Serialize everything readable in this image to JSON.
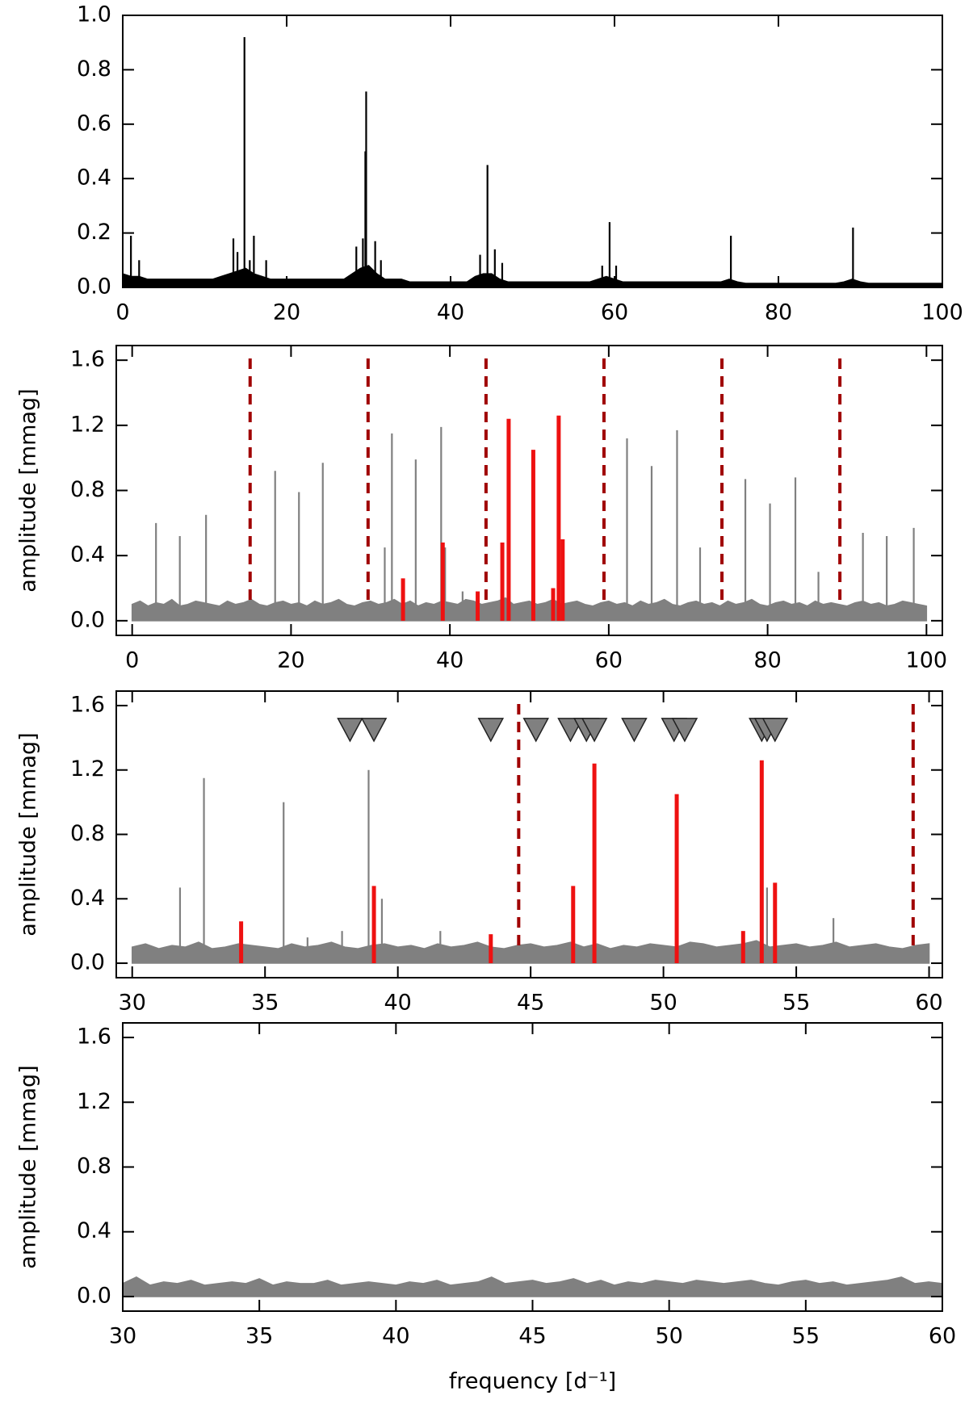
{
  "chart_data": [
    {
      "type": "spectrum",
      "xlim": [
        0,
        100
      ],
      "ylim": [
        0,
        1.0
      ],
      "xticks": [
        0,
        20,
        40,
        60,
        80,
        100
      ],
      "yticks": [
        {
          "value": 0,
          "label": "0.0"
        },
        0.2,
        0.4,
        0.6,
        0.8,
        {
          "value": 1.0,
          "label": "1.0"
        }
      ],
      "noise": {
        "color": "#000000",
        "x": [
          0,
          1,
          2,
          3,
          4,
          5,
          6,
          7,
          8,
          9,
          10,
          11,
          12,
          13,
          14,
          15,
          16,
          17,
          18,
          19,
          20,
          21,
          22,
          23,
          24,
          25,
          26,
          27,
          28,
          29,
          30,
          31,
          32,
          33,
          34,
          35,
          36,
          37,
          38,
          39,
          40,
          41,
          42,
          43,
          44,
          45,
          46,
          47,
          48,
          49,
          50,
          51,
          52,
          53,
          54,
          55,
          56,
          57,
          58,
          59,
          60,
          61,
          62,
          63,
          64,
          65,
          66,
          67,
          68,
          69,
          70,
          71,
          72,
          73,
          74,
          75,
          76,
          77,
          78,
          79,
          80,
          81,
          82,
          83,
          84,
          85,
          86,
          87,
          88,
          89,
          90,
          91,
          92,
          93,
          94,
          95,
          96,
          97,
          98,
          99,
          100
        ],
        "values": [
          0.05,
          0.04,
          0.04,
          0.03,
          0.03,
          0.03,
          0.03,
          0.03,
          0.03,
          0.03,
          0.03,
          0.03,
          0.04,
          0.05,
          0.06,
          0.07,
          0.05,
          0.04,
          0.03,
          0.03,
          0.03,
          0.03,
          0.03,
          0.03,
          0.03,
          0.03,
          0.03,
          0.03,
          0.05,
          0.07,
          0.08,
          0.05,
          0.03,
          0.03,
          0.03,
          0.02,
          0.02,
          0.02,
          0.02,
          0.02,
          0.02,
          0.02,
          0.02,
          0.04,
          0.05,
          0.05,
          0.03,
          0.02,
          0.02,
          0.02,
          0.02,
          0.02,
          0.02,
          0.02,
          0.02,
          0.02,
          0.02,
          0.02,
          0.03,
          0.04,
          0.03,
          0.02,
          0.02,
          0.02,
          0.02,
          0.02,
          0.02,
          0.02,
          0.02,
          0.02,
          0.02,
          0.02,
          0.02,
          0.02,
          0.03,
          0.02,
          0.015,
          0.015,
          0.015,
          0.015,
          0.015,
          0.015,
          0.015,
          0.015,
          0.015,
          0.015,
          0.015,
          0.015,
          0.02,
          0.03,
          0.02,
          0.015,
          0.015,
          0.015,
          0.015,
          0.015,
          0.015,
          0.015,
          0.015,
          0.015,
          0.015
        ]
      },
      "peaks": {
        "color": "#000000",
        "x": [
          1.0,
          2.0,
          13.5,
          14.0,
          14.85,
          15.5,
          16.0,
          17.5,
          28.5,
          29.3,
          29.6,
          29.7,
          30.8,
          31.5,
          43.6,
          44.5,
          45.4,
          46.3,
          58.5,
          59.4,
          60.2,
          74.2,
          89.1
        ],
        "values": [
          0.19,
          0.1,
          0.18,
          0.13,
          0.92,
          0.1,
          0.19,
          0.1,
          0.15,
          0.18,
          0.5,
          0.72,
          0.17,
          0.1,
          0.12,
          0.45,
          0.14,
          0.09,
          0.08,
          0.24,
          0.08,
          0.19,
          0.22
        ]
      }
    },
    {
      "type": "spectrum",
      "xlim": [
        -2,
        102
      ],
      "ylim": [
        -0.09,
        1.69
      ],
      "xticks": [
        0,
        20,
        40,
        60,
        80,
        100
      ],
      "yticks": [
        {
          "value": 0,
          "label": "0.0"
        },
        0.4,
        0.8,
        1.2,
        1.6
      ],
      "ylabel": "amplitude [mmag]",
      "noise": {
        "color": "#808080",
        "x": [
          0,
          1,
          2,
          3,
          4,
          5,
          6,
          7,
          8,
          9,
          10,
          11,
          12,
          13,
          14,
          15,
          16,
          17,
          18,
          19,
          20,
          21,
          22,
          23,
          24,
          25,
          26,
          27,
          28,
          29,
          30,
          31,
          32,
          33,
          34,
          35,
          36,
          37,
          38,
          39,
          40,
          41,
          42,
          43,
          44,
          45,
          46,
          47,
          48,
          49,
          50,
          51,
          52,
          53,
          54,
          55,
          56,
          57,
          58,
          59,
          60,
          61,
          62,
          63,
          64,
          65,
          66,
          67,
          68,
          69,
          70,
          71,
          72,
          73,
          74,
          75,
          76,
          77,
          78,
          79,
          80,
          81,
          82,
          83,
          84,
          85,
          86,
          87,
          88,
          89,
          90,
          91,
          92,
          93,
          94,
          95,
          96,
          97,
          98,
          99,
          100
        ],
        "values": [
          0.1,
          0.12,
          0.09,
          0.11,
          0.1,
          0.13,
          0.09,
          0.1,
          0.12,
          0.11,
          0.1,
          0.09,
          0.12,
          0.1,
          0.11,
          0.13,
          0.1,
          0.09,
          0.11,
          0.12,
          0.1,
          0.11,
          0.09,
          0.12,
          0.1,
          0.11,
          0.13,
          0.1,
          0.09,
          0.11,
          0.12,
          0.1,
          0.11,
          0.13,
          0.1,
          0.12,
          0.09,
          0.11,
          0.1,
          0.12,
          0.11,
          0.1,
          0.13,
          0.12,
          0.1,
          0.11,
          0.12,
          0.14,
          0.1,
          0.11,
          0.12,
          0.1,
          0.11,
          0.13,
          0.1,
          0.11,
          0.12,
          0.1,
          0.09,
          0.11,
          0.12,
          0.1,
          0.11,
          0.09,
          0.12,
          0.1,
          0.11,
          0.13,
          0.1,
          0.09,
          0.11,
          0.12,
          0.1,
          0.11,
          0.09,
          0.12,
          0.1,
          0.11,
          0.13,
          0.1,
          0.09,
          0.11,
          0.12,
          0.1,
          0.11,
          0.09,
          0.12,
          0.1,
          0.11,
          0.1,
          0.09,
          0.11,
          0.12,
          0.1,
          0.11,
          0.09,
          0.1,
          0.12,
          0.11,
          0.1,
          0.09
        ]
      },
      "peaks": {
        "color": "#808080",
        "x": [
          3.0,
          6.0,
          9.3,
          18.0,
          21.0,
          24.0,
          31.8,
          32.7,
          35.7,
          38.9,
          39.4,
          41.6,
          62.3,
          65.4,
          68.6,
          71.5,
          77.2,
          80.3,
          83.5,
          86.4,
          92.0,
          95.0,
          98.4
        ],
        "values": [
          0.6,
          0.52,
          0.65,
          0.92,
          0.79,
          0.97,
          0.45,
          1.15,
          0.99,
          1.19,
          0.45,
          0.18,
          1.12,
          0.95,
          1.17,
          0.45,
          0.87,
          0.72,
          0.88,
          0.3,
          0.54,
          0.52,
          0.57
        ]
      },
      "red_peaks": {
        "color": "#ee1111",
        "x": [
          34.1,
          39.1,
          43.5,
          46.6,
          47.4,
          50.5,
          53.0,
          53.7,
          54.2
        ],
        "values": [
          0.26,
          0.48,
          0.18,
          0.48,
          1.24,
          1.05,
          0.2,
          1.26,
          0.5
        ]
      },
      "dashed_lines": {
        "color": "#a00000",
        "x": [
          14.85,
          29.7,
          44.55,
          59.4,
          74.25,
          89.1
        ]
      }
    },
    {
      "type": "spectrum",
      "xlim": [
        29.4,
        60.5
      ],
      "ylim": [
        -0.09,
        1.69
      ],
      "xticks": [
        30,
        35,
        40,
        45,
        50,
        55,
        60
      ],
      "yticks": [
        {
          "value": 0,
          "label": "0.0"
        },
        0.4,
        0.8,
        1.2,
        1.6
      ],
      "ylabel": "amplitude [mmag]",
      "noise": {
        "color": "#808080",
        "x": [
          30,
          30.5,
          31,
          31.5,
          32,
          32.5,
          33,
          33.5,
          34,
          34.5,
          35,
          35.5,
          36,
          36.5,
          37,
          37.5,
          38,
          38.5,
          39,
          39.5,
          40,
          40.5,
          41,
          41.5,
          42,
          42.5,
          43,
          43.5,
          44,
          44.5,
          45,
          45.5,
          46,
          46.5,
          47,
          47.5,
          48,
          48.5,
          49,
          49.5,
          50,
          50.5,
          51,
          51.5,
          52,
          52.5,
          53,
          53.5,
          54,
          54.5,
          55,
          55.5,
          56,
          56.5,
          57,
          57.5,
          58,
          58.5,
          59,
          59.5,
          60
        ],
        "values": [
          0.1,
          0.12,
          0.09,
          0.11,
          0.1,
          0.13,
          0.09,
          0.1,
          0.12,
          0.11,
          0.1,
          0.09,
          0.12,
          0.1,
          0.11,
          0.13,
          0.1,
          0.09,
          0.11,
          0.12,
          0.1,
          0.11,
          0.09,
          0.12,
          0.1,
          0.11,
          0.13,
          0.1,
          0.09,
          0.11,
          0.12,
          0.1,
          0.11,
          0.13,
          0.1,
          0.12,
          0.09,
          0.11,
          0.1,
          0.12,
          0.11,
          0.1,
          0.13,
          0.12,
          0.1,
          0.11,
          0.12,
          0.14,
          0.1,
          0.11,
          0.12,
          0.1,
          0.11,
          0.13,
          0.1,
          0.11,
          0.12,
          0.1,
          0.09,
          0.11,
          0.12
        ]
      },
      "peaks": {
        "color": "#808080",
        "x": [
          31.8,
          32.7,
          35.7,
          36.6,
          37.9,
          38.9,
          39.4,
          41.6,
          53.9,
          56.4
        ],
        "values": [
          0.47,
          1.15,
          1.0,
          0.16,
          0.2,
          1.2,
          0.4,
          0.2,
          0.47,
          0.28
        ]
      },
      "red_peaks": {
        "color": "#ee1111",
        "x": [
          34.1,
          39.1,
          43.5,
          46.6,
          47.4,
          50.5,
          53.0,
          53.7,
          54.2
        ],
        "values": [
          0.26,
          0.48,
          0.18,
          0.48,
          1.24,
          1.05,
          0.2,
          1.26,
          0.5
        ]
      },
      "dashed_lines": {
        "color": "#a00000",
        "x": [
          44.55,
          59.4
        ]
      },
      "triangles": {
        "color": "#808080",
        "y": 1.45,
        "x": [
          38.2,
          39.1,
          43.5,
          45.2,
          46.5,
          47.1,
          47.4,
          48.9,
          50.4,
          50.8,
          53.7,
          53.9,
          54.2
        ]
      }
    },
    {
      "type": "spectrum",
      "xlim": [
        30,
        60
      ],
      "ylim": [
        -0.09,
        1.69
      ],
      "xticks": [
        30,
        35,
        40,
        45,
        50,
        55,
        60
      ],
      "yticks": [
        {
          "value": 0,
          "label": "0.0"
        },
        0.4,
        0.8,
        1.2,
        1.6
      ],
      "ylabel": "amplitude [mmag]",
      "xlabel": "frequency [d⁻¹]",
      "noise": {
        "color": "#808080",
        "x": [
          30,
          30.5,
          31,
          31.5,
          32,
          32.5,
          33,
          33.5,
          34,
          34.5,
          35,
          35.5,
          36,
          36.5,
          37,
          37.5,
          38,
          38.5,
          39,
          39.5,
          40,
          40.5,
          41,
          41.5,
          42,
          42.5,
          43,
          43.5,
          44,
          44.5,
          45,
          45.5,
          46,
          46.5,
          47,
          47.5,
          48,
          48.5,
          49,
          49.5,
          50,
          50.5,
          51,
          51.5,
          52,
          52.5,
          53,
          53.5,
          54,
          54.5,
          55,
          55.5,
          56,
          56.5,
          57,
          57.5,
          58,
          58.5,
          59,
          59.5,
          60
        ],
        "values": [
          0.08,
          0.12,
          0.07,
          0.09,
          0.08,
          0.1,
          0.07,
          0.08,
          0.09,
          0.08,
          0.11,
          0.07,
          0.09,
          0.08,
          0.08,
          0.1,
          0.07,
          0.08,
          0.09,
          0.08,
          0.07,
          0.09,
          0.08,
          0.1,
          0.07,
          0.08,
          0.09,
          0.12,
          0.08,
          0.09,
          0.1,
          0.08,
          0.09,
          0.11,
          0.08,
          0.1,
          0.07,
          0.09,
          0.08,
          0.1,
          0.09,
          0.08,
          0.1,
          0.09,
          0.08,
          0.09,
          0.1,
          0.08,
          0.07,
          0.09,
          0.1,
          0.08,
          0.09,
          0.07,
          0.08,
          0.09,
          0.1,
          0.12,
          0.08,
          0.09,
          0.08
        ]
      }
    }
  ]
}
